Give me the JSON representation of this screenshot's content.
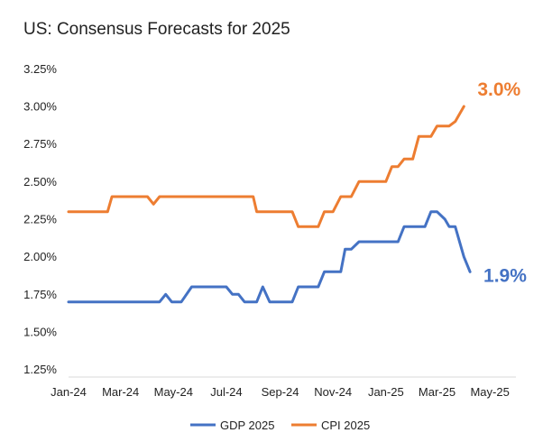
{
  "chart_data": {
    "type": "line",
    "title": "US: Consensus Forecasts for 2025",
    "xlabel": "",
    "ylabel": "",
    "x_ticks": [
      "Jan-24",
      "Mar-24",
      "May-24",
      "Jul-24",
      "Sep-24",
      "Nov-24",
      "Jan-25",
      "Mar-25",
      "May-25"
    ],
    "x_range": [
      "2024-01-01",
      "2025-05-31"
    ],
    "y_ticks": [
      "1.25%",
      "1.50%",
      "1.75%",
      "2.00%",
      "2.25%",
      "2.50%",
      "2.75%",
      "3.00%",
      "3.25%"
    ],
    "ylim": [
      1.2,
      3.3
    ],
    "grid": false,
    "legend_position": "bottom",
    "series": [
      {
        "name": "GDP 2025",
        "color": "#4472C4",
        "end_label": "1.9%",
        "points": [
          [
            "2024-01-01",
            1.7
          ],
          [
            "2024-01-15",
            1.7
          ],
          [
            "2024-02-01",
            1.7
          ],
          [
            "2024-02-15",
            1.7
          ],
          [
            "2024-03-01",
            1.7
          ],
          [
            "2024-03-15",
            1.7
          ],
          [
            "2024-04-01",
            1.7
          ],
          [
            "2024-04-15",
            1.7
          ],
          [
            "2024-04-22",
            1.75
          ],
          [
            "2024-04-29",
            1.7
          ],
          [
            "2024-05-10",
            1.7
          ],
          [
            "2024-05-22",
            1.8
          ],
          [
            "2024-06-01",
            1.8
          ],
          [
            "2024-06-15",
            1.8
          ],
          [
            "2024-07-01",
            1.8
          ],
          [
            "2024-07-08",
            1.75
          ],
          [
            "2024-07-15",
            1.75
          ],
          [
            "2024-07-22",
            1.7
          ],
          [
            "2024-08-05",
            1.7
          ],
          [
            "2024-08-12",
            1.8
          ],
          [
            "2024-08-20",
            1.7
          ],
          [
            "2024-09-01",
            1.7
          ],
          [
            "2024-09-15",
            1.7
          ],
          [
            "2024-09-22",
            1.8
          ],
          [
            "2024-10-01",
            1.8
          ],
          [
            "2024-10-15",
            1.8
          ],
          [
            "2024-10-22",
            1.9
          ],
          [
            "2024-11-01",
            1.9
          ],
          [
            "2024-11-10",
            1.9
          ],
          [
            "2024-11-15",
            2.05
          ],
          [
            "2024-11-22",
            2.05
          ],
          [
            "2024-12-01",
            2.1
          ],
          [
            "2024-12-15",
            2.1
          ],
          [
            "2025-01-01",
            2.1
          ],
          [
            "2025-01-15",
            2.1
          ],
          [
            "2025-01-22",
            2.2
          ],
          [
            "2025-02-01",
            2.2
          ],
          [
            "2025-02-15",
            2.2
          ],
          [
            "2025-02-22",
            2.3
          ],
          [
            "2025-03-01",
            2.3
          ],
          [
            "2025-03-10",
            2.25
          ],
          [
            "2025-03-15",
            2.2
          ],
          [
            "2025-03-22",
            2.2
          ],
          [
            "2025-04-01",
            2.0
          ],
          [
            "2025-04-08",
            1.9
          ]
        ]
      },
      {
        "name": "CPI 2025",
        "color": "#ED7D31",
        "end_label": "3.0%",
        "points": [
          [
            "2024-01-01",
            2.3
          ],
          [
            "2024-01-15",
            2.3
          ],
          [
            "2024-02-01",
            2.3
          ],
          [
            "2024-02-15",
            2.3
          ],
          [
            "2024-02-20",
            2.4
          ],
          [
            "2024-03-01",
            2.4
          ],
          [
            "2024-03-15",
            2.4
          ],
          [
            "2024-04-01",
            2.4
          ],
          [
            "2024-04-08",
            2.35
          ],
          [
            "2024-04-15",
            2.4
          ],
          [
            "2024-05-01",
            2.4
          ],
          [
            "2024-05-15",
            2.4
          ],
          [
            "2024-06-01",
            2.4
          ],
          [
            "2024-06-15",
            2.4
          ],
          [
            "2024-07-01",
            2.4
          ],
          [
            "2024-07-15",
            2.4
          ],
          [
            "2024-08-01",
            2.4
          ],
          [
            "2024-08-05",
            2.3
          ],
          [
            "2024-08-15",
            2.3
          ],
          [
            "2024-09-01",
            2.3
          ],
          [
            "2024-09-15",
            2.3
          ],
          [
            "2024-09-22",
            2.2
          ],
          [
            "2024-10-01",
            2.2
          ],
          [
            "2024-10-15",
            2.2
          ],
          [
            "2024-10-22",
            2.3
          ],
          [
            "2024-11-01",
            2.3
          ],
          [
            "2024-11-10",
            2.4
          ],
          [
            "2024-11-22",
            2.4
          ],
          [
            "2024-12-01",
            2.5
          ],
          [
            "2024-12-15",
            2.5
          ],
          [
            "2025-01-01",
            2.5
          ],
          [
            "2025-01-08",
            2.6
          ],
          [
            "2025-01-15",
            2.6
          ],
          [
            "2025-01-22",
            2.65
          ],
          [
            "2025-02-01",
            2.65
          ],
          [
            "2025-02-08",
            2.8
          ],
          [
            "2025-02-15",
            2.8
          ],
          [
            "2025-02-22",
            2.8
          ],
          [
            "2025-03-01",
            2.87
          ],
          [
            "2025-03-15",
            2.87
          ],
          [
            "2025-03-22",
            2.9
          ],
          [
            "2025-04-01",
            3.0
          ]
        ]
      }
    ]
  }
}
